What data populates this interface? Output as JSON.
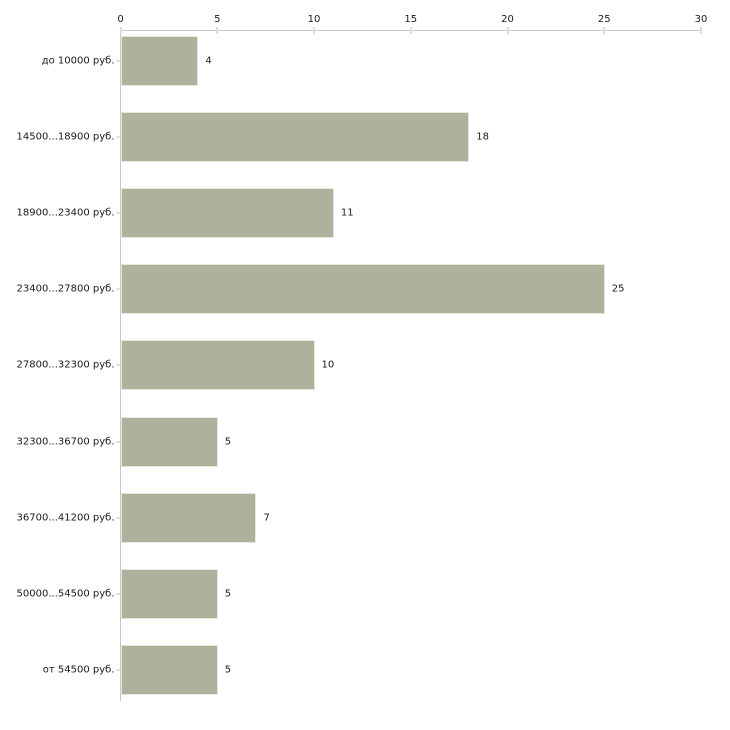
{
  "chart_data": {
    "type": "bar",
    "orientation": "horizontal",
    "title": "",
    "categories": [
      "до 10000 руб.",
      "14500...18900 руб.",
      "18900...23400 руб.",
      "23400...27800 руб.",
      "27800...32300 руб.",
      "32300...36700 руб.",
      "36700...41200 руб.",
      "50000...54500 руб.",
      "от 54500 руб."
    ],
    "values": [
      4,
      18,
      11,
      25,
      10,
      5,
      7,
      5,
      5
    ],
    "value_labels": [
      "4",
      "18",
      "11",
      "25",
      "10",
      "5",
      "7",
      "5",
      "5"
    ],
    "xlabel": "",
    "ylabel": "",
    "xlim": [
      0,
      30
    ],
    "x_ticks": [
      0,
      5,
      10,
      15,
      20,
      25,
      30
    ],
    "x_axis_position": "top",
    "grid": false,
    "legend": null,
    "colors": {
      "bar_fill": "#aeb29c",
      "bar_border": "#e6e8da",
      "axis_line": "#c9c9c9",
      "tick_mark": "#dee0c8",
      "category_tick": "#c4c4c4",
      "text": "#1a1a1a"
    }
  }
}
